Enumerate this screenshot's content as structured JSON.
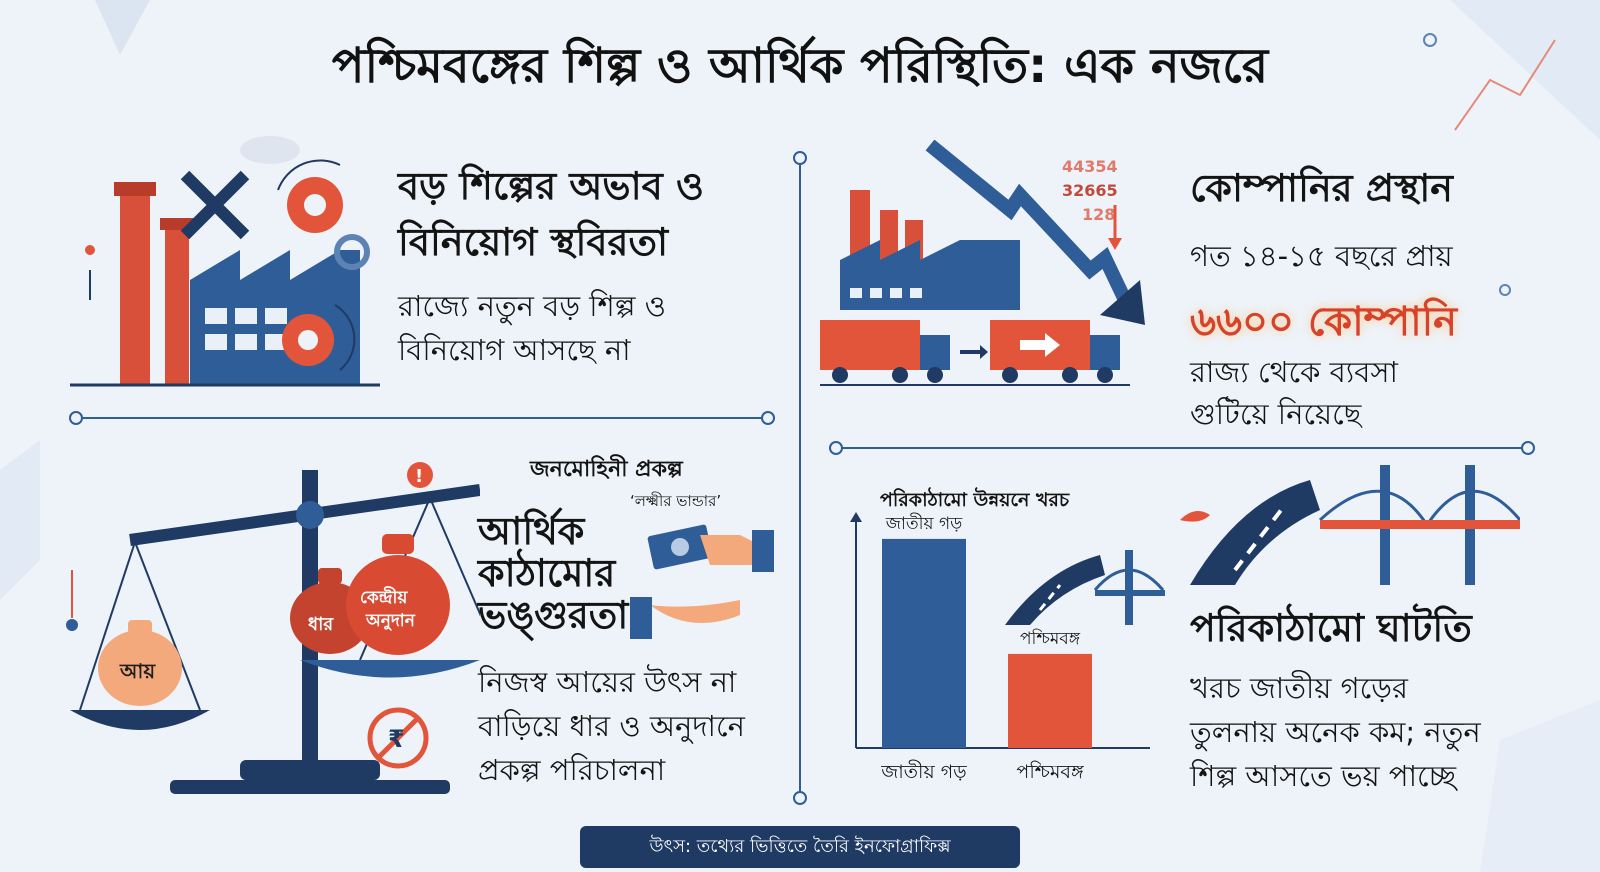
{
  "title": "পশ্চিমবঙ্গের শিল্প ও আর্থিক পরিস্থিতি: এক নজরে",
  "panel1": {
    "heading_line1": "বড় শিল্পের অভাব ও",
    "heading_line2": "বিনিয়োগ স্থবিরতা",
    "body_line1": "রাজ্যে নতুন বড় শিল্প ও",
    "body_line2": "বিনিয়োগ আসছে না"
  },
  "panel2": {
    "heading": "কোম্পানির প্রস্থান",
    "body_line1": "গত ১৪-১৫ বছরে প্রায়",
    "highlight": "৬৬০০ কোম্পানি",
    "body_line2": "রাজ্য থেকে ব্যবসা",
    "body_line3": "গুটিয়ে নিয়েছে",
    "chart_numbers": [
      "44354",
      "32665",
      "128"
    ]
  },
  "panel3": {
    "scheme_label": "জনমোহিনী প্রকল্প",
    "scheme_name": "‘লক্ষ্মীর ভান্ডার’",
    "heading_line1": "আর্থিক",
    "heading_line2": "কাঠামোর",
    "heading_line3": "ভঙ্গুরতা",
    "body_line1": "নিজস্ব আয়ের উৎস না",
    "body_line2": "বাড়িয়ে ধার ও অনুদানে",
    "body_line3": "প্রকল্প পরিচালনা",
    "bag_income": "আয়",
    "bag_loan": "ধার",
    "bag_grant_line1": "কেন্দ্রীয়",
    "bag_grant_line2": "অনুদান"
  },
  "panel4": {
    "chart_title": "পরিকাঠামো উন্নয়নে খরচ",
    "heading": "পরিকাঠামো ঘাটতি",
    "body_line1": "খরচ জাতীয় গড়ের",
    "body_line2": "তুলনায় অনেক কম; নতুন",
    "body_line3": "শিল্প আসতে ভয় পাচ্ছে"
  },
  "chart_data": {
    "type": "bar",
    "title": "পরিকাঠামো উন্নয়নে খরচ",
    "categories": [
      "জাতীয় গড়",
      "পশ্চিমবঙ্গ"
    ],
    "bar_labels": [
      "জাতীয় গড়",
      "পশ্চিমবঙ্গ"
    ],
    "values": [
      100,
      45
    ],
    "ylim": [
      0,
      110
    ],
    "colors": [
      "#2f5d97",
      "#e2553a"
    ]
  },
  "source": "উৎস: তথ্যের ভিত্তিতে তৈরি ইনফোগ্রাফিক্স",
  "colors": {
    "navy": "#1f3a63",
    "blue": "#2f5d97",
    "orange": "#e2553a",
    "red": "#d8422a"
  }
}
